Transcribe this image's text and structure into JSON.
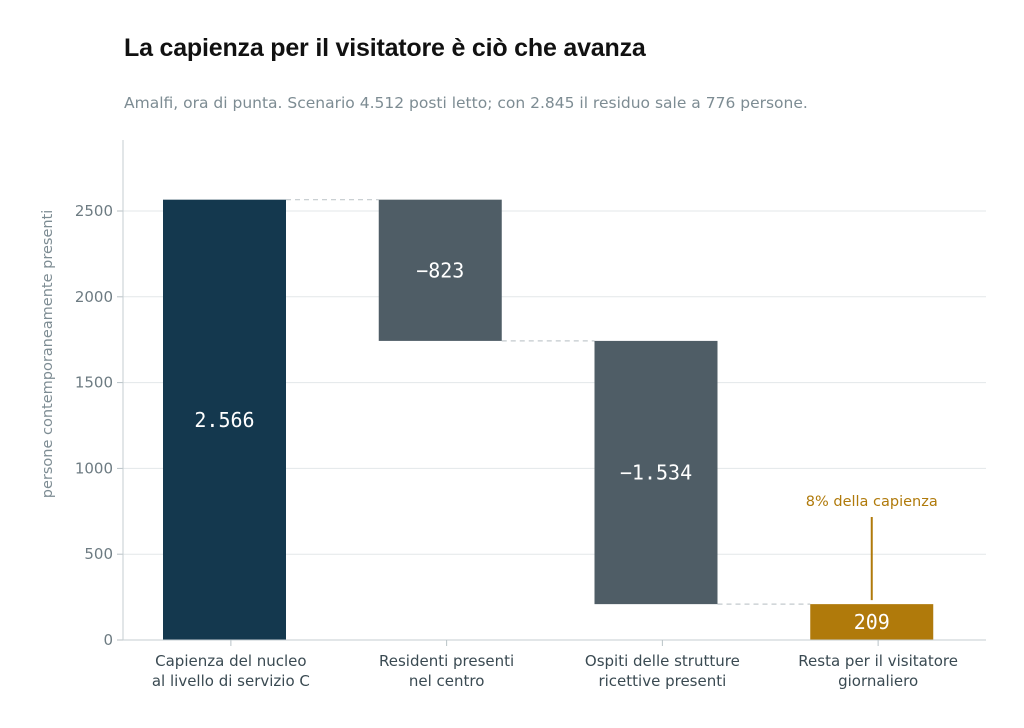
{
  "chart_data": {
    "type": "waterfall",
    "title": "La capienza per il visitatore è ciò che avanza",
    "subtitle": "Amalfi, ora di punta. Scenario 4.512 posti letto; con 2.845 il residuo sale a 776 persone.",
    "ylabel": "persone contemporaneamente presenti",
    "xlabel": "",
    "ylim": [
      0,
      2800
    ],
    "yticks": [
      0,
      500,
      1000,
      1500,
      2000,
      2500
    ],
    "grid": true,
    "steps": [
      {
        "label": [
          "Capienza del nucleo",
          "al livello di servizio C"
        ],
        "value": 2566,
        "kind": "total",
        "display": "2.566",
        "color": "#14384e"
      },
      {
        "label": [
          "Residenti presenti",
          "nel centro"
        ],
        "value": -823,
        "kind": "delta",
        "display": "−823",
        "color": "#4f5d66"
      },
      {
        "label": [
          "Ospiti delle strutture",
          "ricettive presenti"
        ],
        "value": -1534,
        "kind": "delta",
        "display": "−1.534",
        "color": "#4f5d66"
      },
      {
        "label": [
          "Resta per il visitatore",
          "giornaliero"
        ],
        "value": 209,
        "kind": "total",
        "display": "209",
        "color": "#b07a0b"
      }
    ],
    "annotation": {
      "text": "8% della capienza",
      "color": "#b07a0b",
      "target_step": 3
    }
  }
}
